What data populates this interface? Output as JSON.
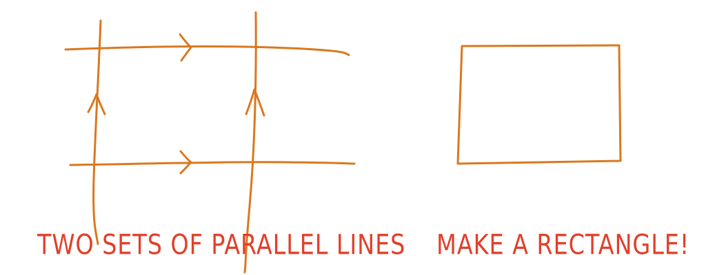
{
  "caption": {
    "left": "TWO SETS OF PARALLEL LINES",
    "right": "MAKE A RECTANGLE!"
  },
  "colors": {
    "ink_orange": "#D9781E",
    "ink_red": "#E0402A"
  },
  "icons": {
    "caption_arrow": "arrow-right-icon"
  }
}
